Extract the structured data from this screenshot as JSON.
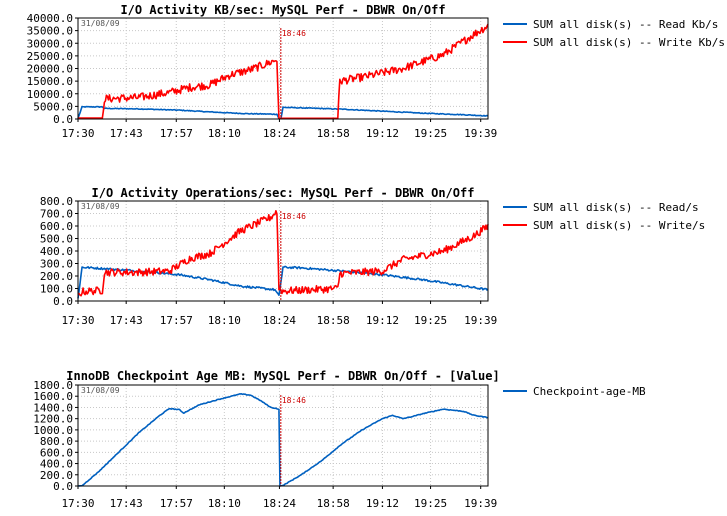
{
  "chart_data": [
    {
      "type": "line",
      "title": "I/O Activity KB/sec: MySQL Perf - DBWR On/Off",
      "date_label": "31/08/09",
      "marker": {
        "x": "18:46",
        "label": "18:46",
        "color": "#cc0000"
      },
      "x_ticks": [
        "17:30",
        "17:43",
        "17:57",
        "18:10",
        "18:24",
        "18:58",
        "19:12",
        "19:25",
        "19:39"
      ],
      "ylim": [
        0,
        40000
      ],
      "y_ticks": [
        "0.0",
        "5000.0",
        "10000.0",
        "15000.0",
        "20000.0",
        "25000.0",
        "30000.0",
        "35000.0",
        "40000.0"
      ],
      "legend_position": "right",
      "grid": true,
      "series": [
        {
          "name": "SUM all disk(s) -- Read Kb/s",
          "color": "#0060c0",
          "noise": 150,
          "points": [
            [
              0,
              200
            ],
            [
              2,
              4800
            ],
            [
              12,
              4800
            ],
            [
              13,
              4200
            ],
            [
              30,
              4000
            ],
            [
              50,
              3500
            ],
            [
              65,
              2800
            ],
            [
              75,
              2400
            ],
            [
              84,
              2100
            ],
            [
              98,
              1900
            ],
            [
              99,
              200
            ],
            [
              100,
              200
            ],
            [
              101,
              4600
            ],
            [
              110,
              4400
            ],
            [
              130,
              3900
            ],
            [
              150,
              3100
            ],
            [
              170,
              2300
            ],
            [
              190,
              1700
            ],
            [
              200,
              1300
            ],
            [
              202,
              1200
            ]
          ]
        },
        {
          "name": "SUM all disk(s) -- Write Kb/s",
          "color": "#ff0000",
          "noise": 1600,
          "points": [
            [
              0,
              400
            ],
            [
              12,
              400
            ],
            [
              13,
              8000
            ],
            [
              30,
              8500
            ],
            [
              45,
              10500
            ],
            [
              55,
              12500
            ],
            [
              65,
              13500
            ],
            [
              75,
              17500
            ],
            [
              85,
              19500
            ],
            [
              95,
              22500
            ],
            [
              98,
              23500
            ],
            [
              99,
              300
            ],
            [
              101,
              300
            ],
            [
              128,
              300
            ],
            [
              129,
              15000
            ],
            [
              140,
              16500
            ],
            [
              160,
              20000
            ],
            [
              180,
              25500
            ],
            [
              195,
              33500
            ],
            [
              202,
              37000
            ]
          ]
        }
      ]
    },
    {
      "type": "line",
      "title": "I/O Activity Operations/sec: MySQL Perf - DBWR On/Off",
      "date_label": "31/08/09",
      "marker": {
        "x": "18:46",
        "label": "18:46",
        "color": "#cc0000"
      },
      "x_ticks": [
        "17:30",
        "17:43",
        "17:57",
        "18:10",
        "18:24",
        "18:58",
        "19:12",
        "19:25",
        "19:39"
      ],
      "ylim": [
        0,
        800
      ],
      "y_ticks": [
        "0.0",
        "100.0",
        "200.0",
        "300.0",
        "400.0",
        "500.0",
        "600.0",
        "700.0",
        "800.0"
      ],
      "legend_position": "right",
      "grid": true,
      "series": [
        {
          "name": "SUM all disk(s) -- Read/s",
          "color": "#0060c0",
          "noise": 8,
          "points": [
            [
              0,
              20
            ],
            [
              2,
              270
            ],
            [
              12,
              260
            ],
            [
              30,
              240
            ],
            [
              50,
              210
            ],
            [
              65,
              170
            ],
            [
              80,
              120
            ],
            [
              97,
              90
            ],
            [
              99,
              40
            ],
            [
              101,
              270
            ],
            [
              110,
              265
            ],
            [
              130,
              240
            ],
            [
              150,
              210
            ],
            [
              170,
              170
            ],
            [
              190,
              120
            ],
            [
              202,
              90
            ]
          ]
        },
        {
          "name": "SUM all disk(s) -- Write/s",
          "color": "#ff0000",
          "noise": 30,
          "points": [
            [
              0,
              40
            ],
            [
              2,
              75
            ],
            [
              12,
              85
            ],
            [
              13,
              230
            ],
            [
              30,
              230
            ],
            [
              45,
              240
            ],
            [
              55,
              340
            ],
            [
              65,
              380
            ],
            [
              80,
              560
            ],
            [
              95,
              670
            ],
            [
              98,
              720
            ],
            [
              99,
              100
            ],
            [
              101,
              80
            ],
            [
              128,
              100
            ],
            [
              129,
              220
            ],
            [
              150,
              240
            ],
            [
              160,
              330
            ],
            [
              180,
              400
            ],
            [
              195,
              520
            ],
            [
              202,
              600
            ]
          ]
        }
      ]
    },
    {
      "type": "line",
      "title": "InnoDB Checkpoint Age MB: MySQL Perf - DBWR On/Off - [Value]",
      "date_label": "31/08/09",
      "marker": {
        "x": "18:46",
        "label": "18:46",
        "color": "#cc0000"
      },
      "x_ticks": [
        "17:30",
        "17:43",
        "17:57",
        "18:10",
        "18:24",
        "18:58",
        "19:12",
        "19:25",
        "19:39"
      ],
      "ylim": [
        0,
        1800
      ],
      "y_ticks": [
        "0.0",
        "200.0",
        "400.0",
        "600.0",
        "800.0",
        "1000.0",
        "1200.0",
        "1400.0",
        "1600.0",
        "1800.0"
      ],
      "legend_position": "right",
      "grid": true,
      "series": [
        {
          "name": "Checkpoint-age-MB",
          "color": "#0060c0",
          "noise": 6,
          "points": [
            [
              0,
              0
            ],
            [
              2,
              5
            ],
            [
              10,
              250
            ],
            [
              20,
              600
            ],
            [
              30,
              950
            ],
            [
              40,
              1250
            ],
            [
              45,
              1380
            ],
            [
              50,
              1360
            ],
            [
              52,
              1300
            ],
            [
              60,
              1450
            ],
            [
              70,
              1550
            ],
            [
              80,
              1640
            ],
            [
              85,
              1620
            ],
            [
              90,
              1520
            ],
            [
              95,
              1400
            ],
            [
              98,
              1380
            ],
            [
              99,
              1360
            ],
            [
              99.5,
              0
            ],
            [
              101,
              10
            ],
            [
              110,
              200
            ],
            [
              120,
              450
            ],
            [
              130,
              750
            ],
            [
              140,
              1000
            ],
            [
              150,
              1200
            ],
            [
              155,
              1260
            ],
            [
              160,
              1200
            ],
            [
              165,
              1240
            ],
            [
              170,
              1290
            ],
            [
              180,
              1370
            ],
            [
              190,
              1330
            ],
            [
              195,
              1260
            ],
            [
              202,
              1220
            ]
          ]
        }
      ]
    }
  ]
}
